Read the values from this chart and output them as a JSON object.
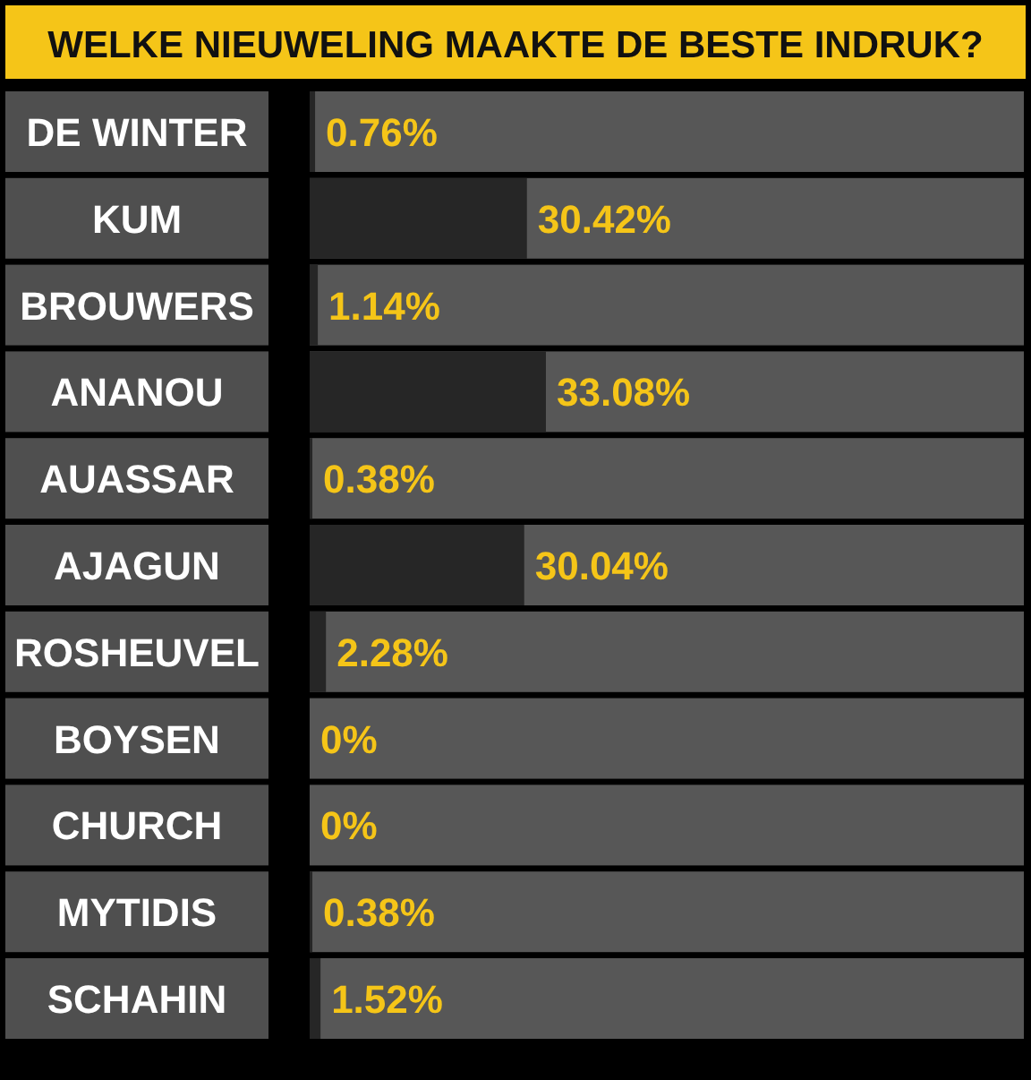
{
  "chart_data": {
    "type": "bar",
    "orientation": "horizontal",
    "title": "WELKE NIEUWELING MAAKTE DE BESTE INDRUK?",
    "categories": [
      "DE WINTER",
      "KUM",
      "BROUWERS",
      "ANANOU",
      "AUASSAR",
      "AJAGUN",
      "ROSHEUVEL",
      "BOYSEN",
      "CHURCH",
      "MYTIDIS",
      "SCHAHIN"
    ],
    "values": [
      0.76,
      30.42,
      1.14,
      33.08,
      0.38,
      30.04,
      2.28,
      0,
      0,
      0.38,
      1.52
    ],
    "value_labels": [
      "0.76%",
      "30.42%",
      "1.14%",
      "33.08%",
      "0.38%",
      "30.04%",
      "2.28%",
      "0%",
      "0%",
      "0.38%",
      "1.52%"
    ],
    "color": "#262626",
    "xlim": [
      0,
      100
    ]
  }
}
